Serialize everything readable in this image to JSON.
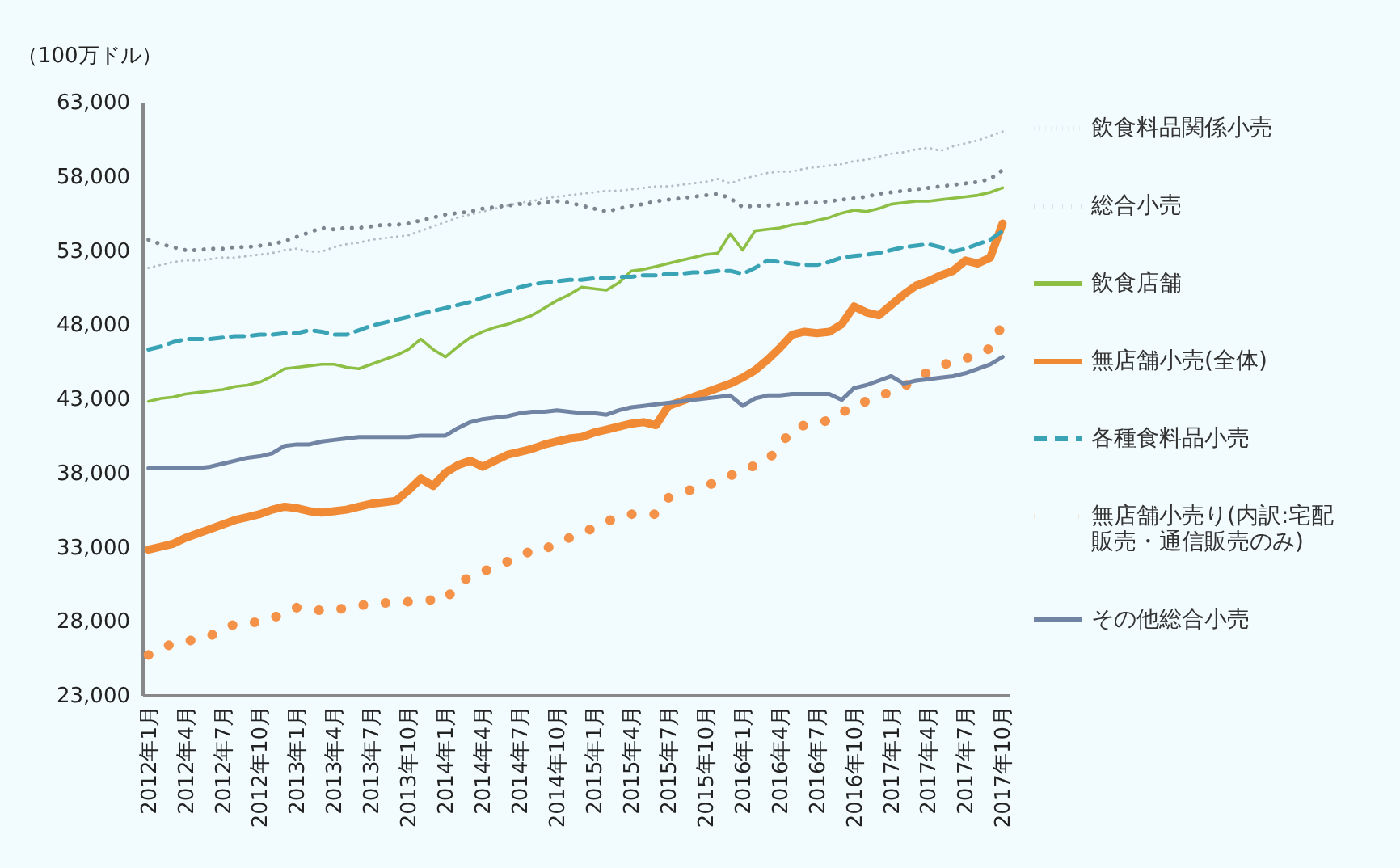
{
  "chart_data": {
    "type": "line",
    "ylabel": "（100万ドル）",
    "categories": [
      "2012年1月",
      null,
      null,
      "2012年4月",
      null,
      null,
      "2012年7月",
      null,
      null,
      "2012年10月",
      null,
      null,
      "2013年1月",
      null,
      null,
      "2013年4月",
      null,
      null,
      "2013年7月",
      null,
      null,
      "2013年10月",
      null,
      null,
      "2014年1月",
      null,
      null,
      "2014年4月",
      null,
      null,
      "2014年7月",
      null,
      null,
      "2014年10月",
      null,
      null,
      "2015年1月",
      null,
      null,
      "2015年4月",
      null,
      null,
      "2015年7月",
      null,
      null,
      "2015年10月",
      null,
      null,
      "2016年1月",
      null,
      null,
      "2016年4月",
      null,
      null,
      "2016年7月",
      null,
      null,
      "2016年10月",
      null,
      null,
      "2017年1月",
      null,
      null,
      "2017年4月",
      null,
      null,
      "2017年7月",
      null,
      null,
      "2017年10月"
    ],
    "ylim": [
      23000,
      63000
    ],
    "yticks": [
      {
        "value": 23000,
        "label": "23,000"
      },
      {
        "value": 28000,
        "label": "28,000"
      },
      {
        "value": 33000,
        "label": "33,000"
      },
      {
        "value": 38000,
        "label": "38,000"
      },
      {
        "value": 43000,
        "label": "43,000"
      },
      {
        "value": 48000,
        "label": "48,000"
      },
      {
        "value": 53000,
        "label": "53,000"
      },
      {
        "value": 58000,
        "label": "58,000"
      },
      {
        "value": 63000,
        "label": "63,000"
      }
    ],
    "grid": false,
    "legend": "right",
    "series": [
      {
        "name": "飲食料品関係小売",
        "color": "#b4bcc6",
        "line_style": "dotted",
        "values": [
          51800,
          52000,
          52200,
          52300,
          52300,
          52400,
          52500,
          52500,
          52600,
          52700,
          52800,
          53000,
          53100,
          52900,
          52900,
          53200,
          53400,
          53500,
          53700,
          53800,
          53900,
          54000,
          54300,
          54600,
          54900,
          55200,
          55400,
          55600,
          55800,
          56000,
          56200,
          56300,
          56500,
          56600,
          56700,
          56800,
          56900,
          57000,
          57000,
          57100,
          57200,
          57300,
          57300,
          57400,
          57500,
          57600,
          57800,
          57500,
          57800,
          58000,
          58200,
          58300,
          58300,
          58500,
          58600,
          58700,
          58800,
          59000,
          59100,
          59300,
          59500,
          59600,
          59800,
          59900,
          59700,
          60000,
          60200,
          60400,
          60700,
          61000
        ]
      },
      {
        "name": "総合小売",
        "color": "#7d858f",
        "line_style": "dotted",
        "values": [
          53700,
          53400,
          53200,
          53000,
          53000,
          53100,
          53100,
          53200,
          53200,
          53300,
          53400,
          53600,
          53900,
          54200,
          54500,
          54400,
          54500,
          54500,
          54600,
          54700,
          54700,
          54800,
          55000,
          55200,
          55400,
          55500,
          55600,
          55800,
          55900,
          56000,
          56100,
          56100,
          56200,
          56300,
          56200,
          56000,
          55800,
          55600,
          55800,
          56000,
          56100,
          56300,
          56400,
          56500,
          56600,
          56700,
          56800,
          56500,
          55900,
          56000,
          56000,
          56100,
          56100,
          56200,
          56200,
          56300,
          56400,
          56500,
          56600,
          56800,
          56900,
          57000,
          57100,
          57200,
          57300,
          57400,
          57500,
          57600,
          57800,
          58400
        ]
      },
      {
        "name": "飲食店舗",
        "color": "#8dbf45",
        "line_style": "solid",
        "values": [
          42800,
          43000,
          43100,
          43300,
          43400,
          43500,
          43600,
          43800,
          43900,
          44100,
          44500,
          45000,
          45100,
          45200,
          45300,
          45300,
          45100,
          45000,
          45300,
          45600,
          45900,
          46300,
          47000,
          46300,
          45800,
          46500,
          47100,
          47500,
          47800,
          48000,
          48300,
          48600,
          49100,
          49600,
          50000,
          50500,
          50400,
          50300,
          50800,
          51600,
          51700,
          51900,
          52100,
          52300,
          52500,
          52700,
          52800,
          54100,
          53000,
          54300,
          54400,
          54500,
          54700,
          54800,
          55000,
          55200,
          55500,
          55700,
          55600,
          55800,
          56100,
          56200,
          56300,
          56300,
          56400,
          56500,
          56600,
          56700,
          56900,
          57200
        ]
      },
      {
        "name": "無店舗小売(全体)",
        "color": "#f08a35",
        "line_style": "solid",
        "values": [
          32800,
          33000,
          33200,
          33600,
          33900,
          34200,
          34500,
          34800,
          35000,
          35200,
          35500,
          35700,
          35600,
          35400,
          35300,
          35400,
          35500,
          35700,
          35900,
          36000,
          36100,
          36800,
          37600,
          37100,
          38000,
          38500,
          38800,
          38400,
          38800,
          39200,
          39400,
          39600,
          39900,
          40100,
          40300,
          40400,
          40700,
          40900,
          41100,
          41300,
          41400,
          41200,
          42500,
          42800,
          43100,
          43400,
          43700,
          44000,
          44400,
          44900,
          45600,
          46400,
          47300,
          47500,
          47400,
          47500,
          48000,
          49200,
          48800,
          48600,
          49300,
          50000,
          50600,
          50900,
          51300,
          51600,
          52300,
          52100,
          52500,
          54800
        ]
      },
      {
        "name": "各種食料品小売",
        "color": "#3aa4b6",
        "line_style": "dashed",
        "values": [
          46300,
          46500,
          46800,
          47000,
          47000,
          47000,
          47100,
          47200,
          47200,
          47300,
          47300,
          47400,
          47400,
          47600,
          47500,
          47300,
          47300,
          47600,
          47900,
          48100,
          48300,
          48500,
          48700,
          48900,
          49100,
          49300,
          49500,
          49800,
          50000,
          50200,
          50500,
          50700,
          50800,
          50900,
          51000,
          51000,
          51100,
          51100,
          51200,
          51200,
          51300,
          51300,
          51400,
          51400,
          51500,
          51500,
          51600,
          51600,
          51400,
          51800,
          52300,
          52200,
          52100,
          52000,
          52000,
          52200,
          52500,
          52600,
          52700,
          52800,
          53000,
          53200,
          53300,
          53400,
          53200,
          52900,
          53100,
          53400,
          53700,
          54300
        ]
      },
      {
        "name": "無店舗小売り(内訳:宅配販売・通信販売のみ)",
        "color": "#f4924a",
        "line_style": "dotted",
        "values": [
          25700,
          26100,
          26500,
          26600,
          26800,
          27000,
          27400,
          27800,
          27900,
          27900,
          28200,
          28500,
          28900,
          28800,
          28700,
          28700,
          28900,
          29000,
          29200,
          29200,
          29300,
          29300,
          29400,
          29400,
          29400,
          30500,
          31000,
          31300,
          31700,
          32000,
          32300,
          32800,
          32800,
          33300,
          33600,
          33900,
          34300,
          34700,
          35000,
          35200,
          35200,
          35200,
          36300,
          36600,
          36900,
          37100,
          37400,
          37800,
          38100,
          38500,
          38800,
          39800,
          40900,
          41200,
          41400,
          41500,
          42000,
          42600,
          42800,
          43100,
          43500,
          43800,
          44300,
          44800,
          45200,
          45500,
          45700,
          45900,
          46400,
          48000
        ]
      },
      {
        "name": "その他総合小売",
        "color": "#7184a3",
        "line_style": "solid",
        "values": [
          38300,
          38300,
          38300,
          38300,
          38300,
          38400,
          38600,
          38800,
          39000,
          39100,
          39300,
          39800,
          39900,
          39900,
          40100,
          40200,
          40300,
          40400,
          40400,
          40400,
          40400,
          40400,
          40500,
          40500,
          40500,
          41000,
          41400,
          41600,
          41700,
          41800,
          42000,
          42100,
          42100,
          42200,
          42100,
          42000,
          42000,
          41900,
          42200,
          42400,
          42500,
          42600,
          42700,
          42800,
          42900,
          43000,
          43100,
          43200,
          42500,
          43000,
          43200,
          43200,
          43300,
          43300,
          43300,
          43300,
          42900,
          43700,
          43900,
          44200,
          44500,
          44000,
          44200,
          44300,
          44400,
          44500,
          44700,
          45000,
          45300,
          45800
        ]
      }
    ]
  }
}
